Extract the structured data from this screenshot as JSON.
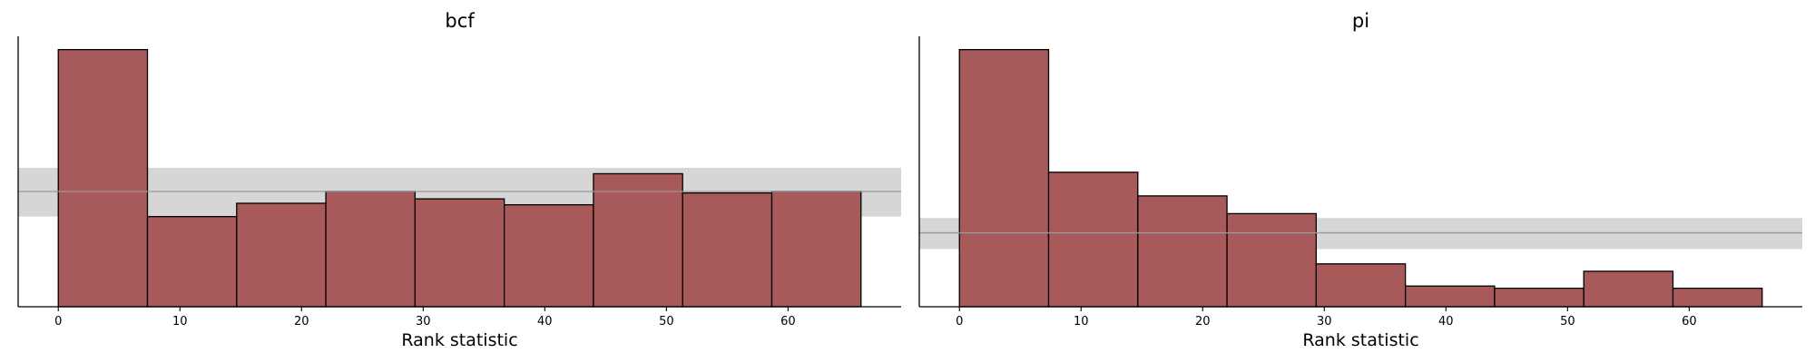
{
  "colors": {
    "bar_fill": "#a8595a",
    "band_fill": "#d6d6d6",
    "band_line": "#999999"
  },
  "chart_data": [
    {
      "type": "bar",
      "title": "bcf",
      "xlabel": "Rank statistic",
      "ylabel": "",
      "xlim": [
        -3.3,
        69.3
      ],
      "ylim": [
        0,
        18.3
      ],
      "xticks": [
        0,
        10,
        20,
        30,
        40,
        50,
        60
      ],
      "bin_edges": [
        0,
        7.333,
        14.667,
        22,
        29.333,
        36.667,
        44,
        51.333,
        58.667,
        66
      ],
      "values": [
        17.4,
        6.1,
        7.0,
        7.8,
        7.3,
        6.9,
        9.0,
        7.7,
        7.8
      ],
      "reference_band": {
        "low": 6.1,
        "mid": 7.8,
        "high": 9.4
      },
      "grid": false,
      "legend": "none"
    },
    {
      "type": "bar",
      "title": "pi",
      "xlabel": "Rank statistic",
      "ylabel": "",
      "xlim": [
        -3.3,
        69.3
      ],
      "ylim": [
        0,
        18.3
      ],
      "xticks": [
        0,
        10,
        20,
        30,
        40,
        50,
        60
      ],
      "bin_edges": [
        0,
        7.333,
        14.667,
        22,
        29.333,
        36.667,
        44,
        51.333,
        58.667,
        66
      ],
      "values": [
        17.4,
        9.1,
        7.5,
        6.3,
        2.9,
        1.4,
        1.25,
        2.4,
        1.25
      ],
      "reference_band": {
        "low": 3.9,
        "mid": 5.0,
        "high": 6.0
      },
      "grid": false,
      "legend": "none"
    }
  ]
}
